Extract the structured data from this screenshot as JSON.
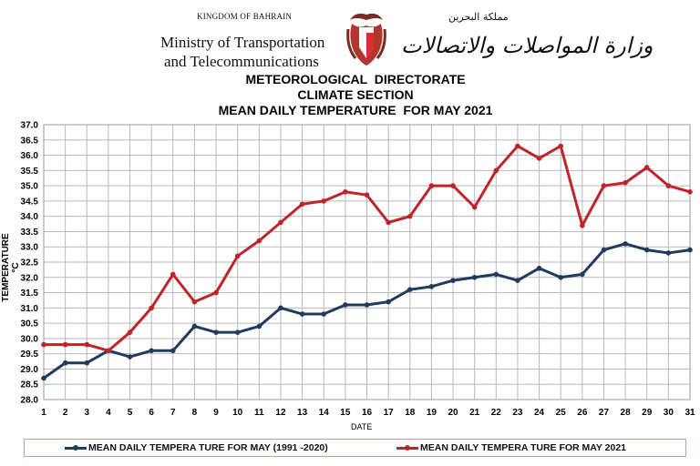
{
  "header": {
    "kingdom": "KINGDOM OF BAHRAIN",
    "ministry_line1": "Ministry of Transportation",
    "ministry_line2": "and Telecommunications",
    "arabic_small": "مملكة البحرين",
    "arabic_ministry": "وزارة المواصلات والاتصالات",
    "emblem_icon": "bahrain-coat-of-arms-icon"
  },
  "colors": {
    "series1": "#1f3b5e",
    "series2": "#c0232a",
    "grid": "#b9b9b9",
    "legend_border": "#c9a0a0"
  },
  "chart_data": {
    "type": "line",
    "title_lines": [
      "METEOROLOGICAL  DIRECTORATE",
      "CLIMATE SECTION",
      "MEAN DAILY TEMPERATURE  FOR MAY 2021"
    ],
    "xlabel": "DATE",
    "ylabel": "TEMPERATURE °C",
    "x": [
      1,
      2,
      3,
      4,
      5,
      6,
      7,
      8,
      9,
      10,
      11,
      12,
      13,
      14,
      15,
      16,
      17,
      18,
      19,
      20,
      21,
      22,
      23,
      24,
      25,
      26,
      27,
      28,
      29,
      30,
      31
    ],
    "ylim": [
      28.0,
      37.0
    ],
    "yticks": [
      "28.0",
      "28.5",
      "29.0",
      "29.5",
      "30.0",
      "30.5",
      "31.0",
      "31.5",
      "32.0",
      "32.5",
      "33.0",
      "33.5",
      "34.0",
      "34.5",
      "35.0",
      "35.5",
      "36.0",
      "36.5",
      "37.0"
    ],
    "grid": true,
    "legend_position": "bottom",
    "series": [
      {
        "name": "MEAN DAILY TEMPERA TURE FOR MAY (1991 -2020)",
        "values": [
          28.7,
          29.2,
          29.2,
          29.6,
          29.4,
          29.6,
          29.6,
          30.4,
          30.2,
          30.2,
          30.4,
          31.0,
          30.8,
          30.8,
          31.1,
          31.1,
          31.2,
          31.6,
          31.7,
          31.9,
          32.0,
          32.1,
          31.9,
          32.3,
          32.0,
          32.1,
          32.9,
          33.1,
          32.9,
          32.8,
          32.9
        ]
      },
      {
        "name": "MEAN DAILY TEMPERA TURE FOR MAY 2021",
        "values": [
          29.8,
          29.8,
          29.8,
          29.6,
          30.2,
          31.0,
          32.1,
          31.2,
          31.5,
          32.7,
          33.2,
          33.8,
          34.4,
          34.5,
          34.8,
          34.7,
          33.8,
          34.0,
          35.0,
          35.0,
          34.3,
          35.5,
          36.3,
          35.9,
          36.3,
          33.7,
          35.0,
          35.1,
          35.6,
          35.0,
          34.8
        ]
      }
    ]
  }
}
